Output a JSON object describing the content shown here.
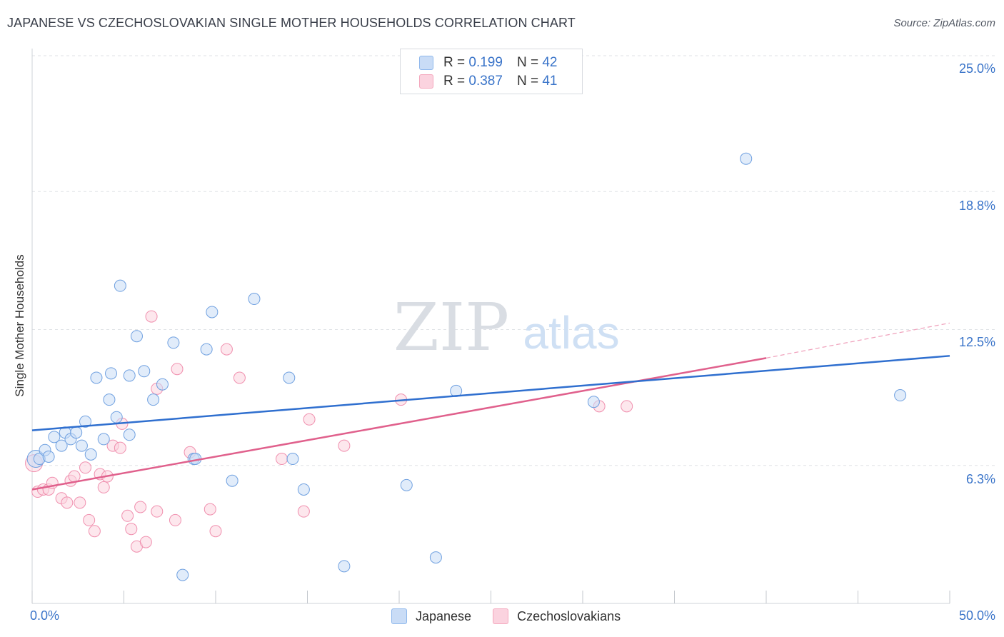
{
  "title": "JAPANESE VS CZECHOSLOVAKIAN SINGLE MOTHER HOUSEHOLDS CORRELATION CHART",
  "source": "Source: ZipAtlas.com",
  "watermark": {
    "zip": "ZIP",
    "atlas": "atlas"
  },
  "legend": {
    "r_label": "R =",
    "n_label": "N =",
    "rows": [
      {
        "r": "0.199",
        "n": "42",
        "color": "#8fb8ec"
      },
      {
        "r": "0.387",
        "n": "41",
        "color": "#f4a7bd"
      }
    ]
  },
  "chart_data": {
    "type": "scatter",
    "title": "JAPANESE VS CZECHOSLOVAKIAN SINGLE MOTHER HOUSEHOLDS CORRELATION CHART",
    "xlabel": "",
    "ylabel": "Single Mother Households",
    "xlim": [
      0,
      50
    ],
    "ylim": [
      0,
      25.0
    ],
    "x_tick_labels": [
      "0.0%",
      "50.0%"
    ],
    "y_ticks": [
      6.3,
      12.5,
      18.8,
      25.0
    ],
    "y_tick_labels": [
      "6.3%",
      "12.5%",
      "18.8%",
      "25.0%"
    ],
    "grid": true,
    "legend_position": "bottom-center",
    "series": [
      {
        "name": "Japanese",
        "color": "#8fb8ec",
        "line_color": "#2f6fcf",
        "trend": {
          "x0": 0,
          "y0": 7.9,
          "x1": 50,
          "y1": 11.3
        },
        "points": [
          {
            "x": 0.2,
            "y": 6.6
          },
          {
            "x": 0.4,
            "y": 6.6
          },
          {
            "x": 0.7,
            "y": 7.0
          },
          {
            "x": 0.9,
            "y": 6.7
          },
          {
            "x": 1.2,
            "y": 7.6
          },
          {
            "x": 1.6,
            "y": 7.2
          },
          {
            "x": 1.8,
            "y": 7.8
          },
          {
            "x": 2.1,
            "y": 7.5
          },
          {
            "x": 2.4,
            "y": 7.8
          },
          {
            "x": 2.7,
            "y": 7.2
          },
          {
            "x": 2.9,
            "y": 8.3
          },
          {
            "x": 3.2,
            "y": 6.8
          },
          {
            "x": 3.5,
            "y": 10.3
          },
          {
            "x": 3.9,
            "y": 7.5
          },
          {
            "x": 4.2,
            "y": 9.3
          },
          {
            "x": 4.3,
            "y": 10.5
          },
          {
            "x": 4.6,
            "y": 8.5
          },
          {
            "x": 4.8,
            "y": 14.5
          },
          {
            "x": 5.3,
            "y": 7.7
          },
          {
            "x": 5.3,
            "y": 10.4
          },
          {
            "x": 5.7,
            "y": 12.2
          },
          {
            "x": 6.1,
            "y": 10.6
          },
          {
            "x": 6.6,
            "y": 9.3
          },
          {
            "x": 7.1,
            "y": 10.0
          },
          {
            "x": 7.7,
            "y": 11.9
          },
          {
            "x": 8.2,
            "y": 1.3
          },
          {
            "x": 8.8,
            "y": 6.6
          },
          {
            "x": 8.9,
            "y": 6.6
          },
          {
            "x": 9.5,
            "y": 11.6
          },
          {
            "x": 9.8,
            "y": 13.3
          },
          {
            "x": 10.9,
            "y": 5.6
          },
          {
            "x": 12.1,
            "y": 13.9
          },
          {
            "x": 14.0,
            "y": 10.3
          },
          {
            "x": 14.2,
            "y": 6.6
          },
          {
            "x": 14.8,
            "y": 5.2
          },
          {
            "x": 17.0,
            "y": 1.7
          },
          {
            "x": 20.4,
            "y": 5.4
          },
          {
            "x": 22.0,
            "y": 2.1
          },
          {
            "x": 23.1,
            "y": 9.7
          },
          {
            "x": 30.6,
            "y": 9.2
          },
          {
            "x": 38.9,
            "y": 20.3
          },
          {
            "x": 47.3,
            "y": 9.5
          }
        ]
      },
      {
        "name": "Czechoslovakians",
        "color": "#f4a7bd",
        "line_color": "#e0608c",
        "trend": {
          "x0": 0,
          "y0": 5.2,
          "x1": 40,
          "y1": 11.2
        },
        "trend_dashed": {
          "x0": 40,
          "y0": 11.2,
          "x1": 50,
          "y1": 12.8
        },
        "points": [
          {
            "x": 0.1,
            "y": 6.4
          },
          {
            "x": 0.3,
            "y": 5.1
          },
          {
            "x": 0.6,
            "y": 5.2
          },
          {
            "x": 0.9,
            "y": 5.2
          },
          {
            "x": 1.1,
            "y": 5.5
          },
          {
            "x": 1.6,
            "y": 4.8
          },
          {
            "x": 1.9,
            "y": 4.6
          },
          {
            "x": 2.1,
            "y": 5.6
          },
          {
            "x": 2.3,
            "y": 5.8
          },
          {
            "x": 2.6,
            "y": 4.6
          },
          {
            "x": 2.9,
            "y": 6.2
          },
          {
            "x": 3.1,
            "y": 3.8
          },
          {
            "x": 3.4,
            "y": 3.3
          },
          {
            "x": 3.7,
            "y": 5.9
          },
          {
            "x": 3.9,
            "y": 5.3
          },
          {
            "x": 4.1,
            "y": 5.8
          },
          {
            "x": 4.4,
            "y": 7.2
          },
          {
            "x": 4.8,
            "y": 7.1
          },
          {
            "x": 4.9,
            "y": 8.2
          },
          {
            "x": 5.2,
            "y": 4.0
          },
          {
            "x": 5.4,
            "y": 3.4
          },
          {
            "x": 5.7,
            "y": 2.6
          },
          {
            "x": 5.9,
            "y": 4.4
          },
          {
            "x": 6.2,
            "y": 2.8
          },
          {
            "x": 6.5,
            "y": 13.1
          },
          {
            "x": 6.8,
            "y": 4.2
          },
          {
            "x": 6.8,
            "y": 9.8
          },
          {
            "x": 7.8,
            "y": 3.8
          },
          {
            "x": 7.9,
            "y": 10.7
          },
          {
            "x": 8.6,
            "y": 6.9
          },
          {
            "x": 9.7,
            "y": 4.3
          },
          {
            "x": 10.0,
            "y": 3.3
          },
          {
            "x": 10.6,
            "y": 11.6
          },
          {
            "x": 11.3,
            "y": 10.3
          },
          {
            "x": 13.6,
            "y": 6.6
          },
          {
            "x": 14.8,
            "y": 4.2
          },
          {
            "x": 15.1,
            "y": 8.4
          },
          {
            "x": 17.0,
            "y": 7.2
          },
          {
            "x": 20.1,
            "y": 9.3
          },
          {
            "x": 30.9,
            "y": 9.0
          },
          {
            "x": 32.4,
            "y": 9.0
          }
        ]
      }
    ]
  }
}
